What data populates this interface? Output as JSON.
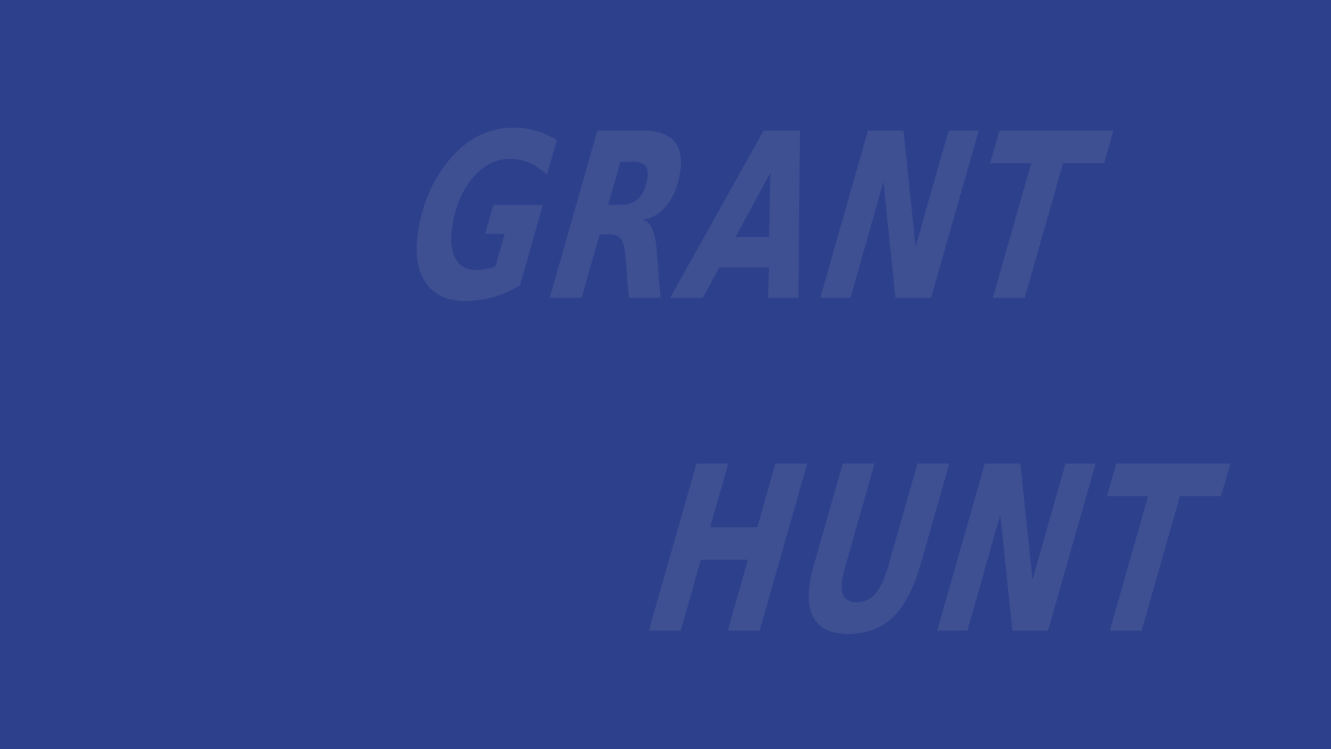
{
  "background_color": "#2c408c",
  "text_color": "#3e4f92",
  "name": {
    "first": "GRANT",
    "last": "HUNT"
  }
}
